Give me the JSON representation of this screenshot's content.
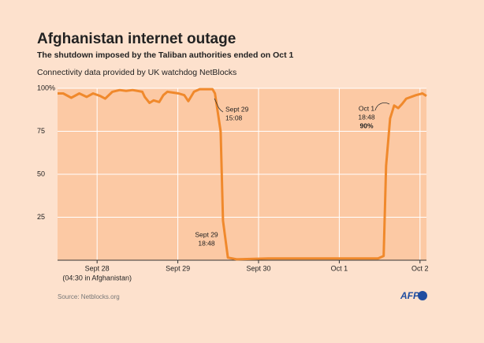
{
  "chart_data": {
    "type": "line",
    "title": "Afghanistan internet outage",
    "subtitle": "The shutdown imposed by the Taliban authorities ended on Oct 1",
    "y_label": "Connectivity data provided by UK watchdog NetBlocks",
    "source": "Source: Netblocks.org",
    "logo": "AFP",
    "color": "#f0892c",
    "background": "#fcc9a4",
    "grid": true,
    "x": [
      0.51,
      0.58,
      0.68,
      0.78,
      0.87,
      0.95,
      1.04,
      1.1,
      1.19,
      1.28,
      1.36,
      1.44,
      1.56,
      1.59,
      1.65,
      1.7,
      1.77,
      1.82,
      1.87,
      2.01,
      2.08,
      2.13,
      2.2,
      2.27,
      2.43,
      2.46,
      2.53,
      2.56,
      2.62,
      2.73,
      3.12,
      4.48,
      4.55,
      4.58,
      4.63,
      4.68,
      4.73,
      4.78,
      4.83,
      4.95,
      5.03,
      5.08
    ],
    "values": [
      97,
      97,
      94.5,
      97,
      95,
      97,
      95.5,
      94,
      98,
      99,
      98.5,
      99,
      98,
      95,
      91.5,
      93,
      92,
      96,
      98,
      97,
      96,
      92.5,
      98,
      99.5,
      99.5,
      97,
      75,
      23,
      1.5,
      0.5,
      1,
      1,
      2.5,
      55,
      82.5,
      90,
      88.5,
      91,
      94,
      96,
      97,
      95.5
    ],
    "xlim": [
      0.51,
      5.08
    ],
    "xticks": [
      {
        "value": 1,
        "label": "Sept 28"
      },
      {
        "value": 2,
        "label": "Sept 29"
      },
      {
        "value": 3,
        "label": "Sept 30"
      },
      {
        "value": 4,
        "label": "Oct 1"
      },
      {
        "value": 5,
        "label": "Oct 2"
      }
    ],
    "x_note": "(04:30 in Afghanistan)",
    "ylim": [
      0,
      100
    ],
    "yticks": [
      25,
      50,
      75,
      {
        "value": 100,
        "label": "100%"
      }
    ],
    "annotations": [
      {
        "lines": [
          "Sept 29",
          "15:08"
        ]
      },
      {
        "lines": [
          "Sept 29",
          "18:48"
        ]
      },
      {
        "lines": [
          "Oct 1",
          "18:48",
          "90%"
        ]
      }
    ]
  }
}
